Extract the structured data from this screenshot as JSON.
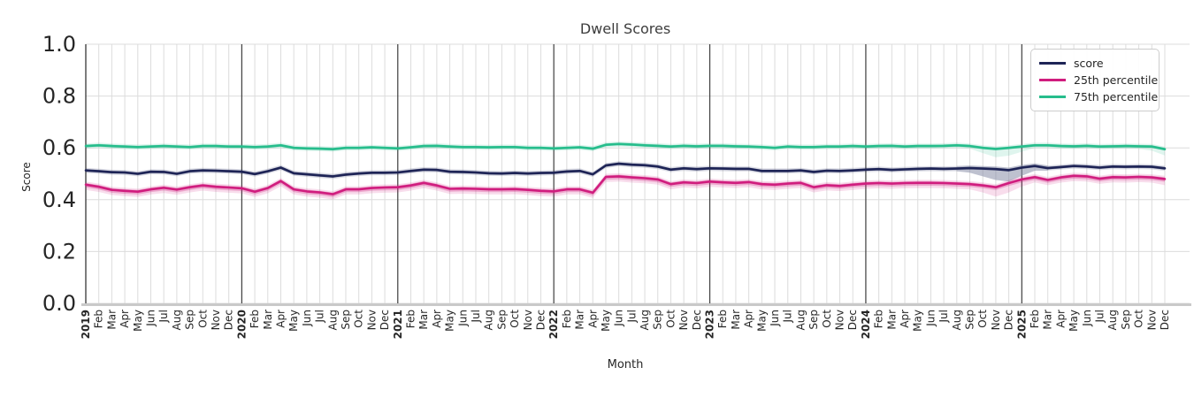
{
  "chart_data": {
    "type": "line",
    "title": "Dwell Scores",
    "xlabel": "Month",
    "ylabel": "Score",
    "ylim": [
      0.0,
      1.0
    ],
    "yticks": [
      "0.0",
      "0.2",
      "0.4",
      "0.6",
      "0.8",
      "1.0"
    ],
    "grid": true,
    "legend_position": "upper right",
    "x_labels": [
      "2019",
      "Feb",
      "Mar",
      "Apr",
      "May",
      "Jun",
      "Jul",
      "Aug",
      "Sep",
      "Oct",
      "Nov",
      "Dec",
      "2020",
      "Feb",
      "Mar",
      "Apr",
      "May",
      "Jun",
      "Jul",
      "Aug",
      "Sep",
      "Oct",
      "Nov",
      "Dec",
      "2021",
      "Feb",
      "Mar",
      "Apr",
      "May",
      "Jun",
      "Jul",
      "Aug",
      "Sep",
      "Oct",
      "Nov",
      "Dec",
      "2022",
      "Feb",
      "Mar",
      "Apr",
      "May",
      "Jun",
      "Jul",
      "Aug",
      "Sep",
      "Oct",
      "Nov",
      "Dec",
      "2023",
      "Feb",
      "Mar",
      "Apr",
      "May",
      "Jun",
      "Jul",
      "Aug",
      "Sep",
      "Oct",
      "Nov",
      "Dec",
      "2024",
      "Feb",
      "Mar",
      "Apr",
      "May",
      "Jun",
      "Jul",
      "Aug",
      "Sep",
      "Oct",
      "Nov",
      "Dec",
      "2025",
      "Feb",
      "Mar",
      "Apr",
      "May",
      "Jun",
      "Jul",
      "Aug",
      "Sep",
      "Oct",
      "Nov",
      "Dec"
    ],
    "series": [
      {
        "name": "75th percentile",
        "color": "#26bd8c",
        "band_upper": 0.01,
        "band_lower": 0.01,
        "wide_lower": {
          "69": 0.02,
          "70": 0.032,
          "71": 0.03,
          "72": 0.02,
          "82": 0.016,
          "83": 0.024
        },
        "values": [
          0.607,
          0.61,
          0.607,
          0.605,
          0.603,
          0.605,
          0.607,
          0.605,
          0.603,
          0.607,
          0.607,
          0.605,
          0.605,
          0.603,
          0.605,
          0.61,
          0.6,
          0.598,
          0.597,
          0.595,
          0.6,
          0.6,
          0.602,
          0.6,
          0.598,
          0.602,
          0.607,
          0.608,
          0.605,
          0.603,
          0.603,
          0.602,
          0.603,
          0.603,
          0.6,
          0.6,
          0.598,
          0.6,
          0.602,
          0.597,
          0.612,
          0.615,
          0.613,
          0.61,
          0.608,
          0.605,
          0.608,
          0.606,
          0.608,
          0.608,
          0.606,
          0.605,
          0.603,
          0.6,
          0.605,
          0.603,
          0.603,
          0.605,
          0.605,
          0.607,
          0.605,
          0.607,
          0.608,
          0.605,
          0.607,
          0.607,
          0.608,
          0.61,
          0.607,
          0.6,
          0.596,
          0.6,
          0.605,
          0.61,
          0.61,
          0.607,
          0.606,
          0.608,
          0.605,
          0.606,
          0.607,
          0.606,
          0.605,
          0.595
        ]
      },
      {
        "name": "score",
        "color": "#1e2456",
        "band_upper": 0.01,
        "band_lower": 0.01,
        "wide_lower": {
          "68": 0.018,
          "69": 0.03,
          "70": 0.042,
          "71": 0.044,
          "72": 0.032,
          "73": 0.018
        },
        "wide_color": "#9a9db3",
        "values": [
          0.513,
          0.51,
          0.506,
          0.505,
          0.5,
          0.508,
          0.507,
          0.5,
          0.51,
          0.513,
          0.512,
          0.51,
          0.508,
          0.499,
          0.51,
          0.524,
          0.502,
          0.498,
          0.494,
          0.49,
          0.497,
          0.501,
          0.504,
          0.504,
          0.505,
          0.511,
          0.516,
          0.515,
          0.508,
          0.507,
          0.505,
          0.502,
          0.501,
          0.503,
          0.501,
          0.503,
          0.504,
          0.509,
          0.511,
          0.498,
          0.532,
          0.539,
          0.535,
          0.533,
          0.528,
          0.516,
          0.521,
          0.518,
          0.521,
          0.52,
          0.519,
          0.519,
          0.511,
          0.511,
          0.511,
          0.513,
          0.507,
          0.512,
          0.511,
          0.513,
          0.516,
          0.518,
          0.515,
          0.517,
          0.519,
          0.52,
          0.519,
          0.52,
          0.522,
          0.52,
          0.518,
          0.514,
          0.524,
          0.53,
          0.522,
          0.526,
          0.53,
          0.528,
          0.524,
          0.528,
          0.527,
          0.528,
          0.527,
          0.521
        ]
      },
      {
        "name": "25th percentile",
        "color": "#d01d7e",
        "band_upper": 0.012,
        "band_lower": 0.02,
        "wide_lower": {
          "69": 0.027,
          "70": 0.036,
          "71": 0.036,
          "72": 0.027,
          "83": 0.024
        },
        "values": [
          0.458,
          0.45,
          0.438,
          0.434,
          0.431,
          0.44,
          0.446,
          0.439,
          0.448,
          0.455,
          0.45,
          0.447,
          0.444,
          0.431,
          0.445,
          0.472,
          0.44,
          0.432,
          0.428,
          0.421,
          0.44,
          0.44,
          0.445,
          0.447,
          0.448,
          0.455,
          0.465,
          0.455,
          0.442,
          0.443,
          0.442,
          0.44,
          0.44,
          0.441,
          0.438,
          0.434,
          0.432,
          0.44,
          0.44,
          0.427,
          0.488,
          0.49,
          0.486,
          0.483,
          0.478,
          0.46,
          0.467,
          0.464,
          0.47,
          0.467,
          0.465,
          0.468,
          0.46,
          0.458,
          0.462,
          0.465,
          0.448,
          0.456,
          0.453,
          0.458,
          0.462,
          0.464,
          0.462,
          0.464,
          0.465,
          0.465,
          0.464,
          0.462,
          0.46,
          0.455,
          0.448,
          0.464,
          0.478,
          0.487,
          0.476,
          0.486,
          0.492,
          0.49,
          0.481,
          0.487,
          0.486,
          0.488,
          0.486,
          0.48
        ]
      }
    ],
    "legend_entries": [
      "score",
      "25th percentile",
      "75th percentile"
    ],
    "colors": {
      "score": "#1e2456",
      "p25": "#d01d7e",
      "p75": "#26bd8c",
      "grid": "#dcdcdc",
      "year_line": "#3e3e3e",
      "bottom_spine": "#c9c9c9",
      "text": "#262626"
    }
  }
}
